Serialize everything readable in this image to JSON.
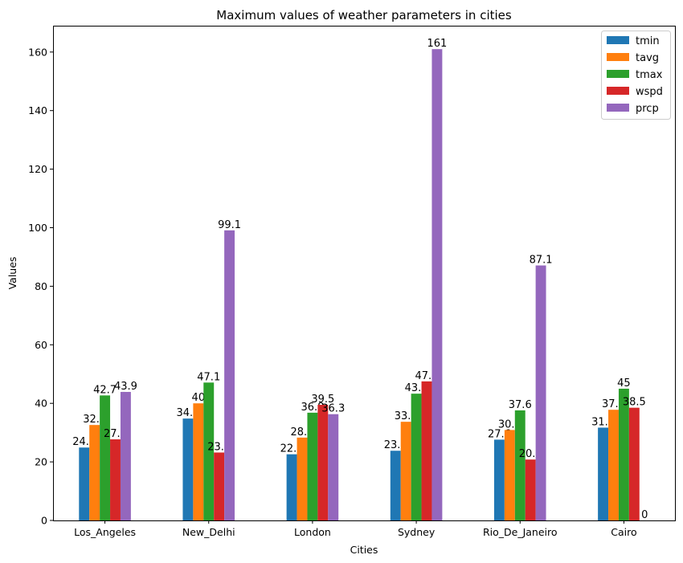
{
  "chart_data": {
    "type": "bar",
    "title": "Maximum values of weather parameters in cities",
    "xlabel": "Cities",
    "ylabel": "Values",
    "ylim": [
      0,
      169
    ],
    "yticks": [
      0,
      20,
      40,
      60,
      80,
      100,
      120,
      140,
      160
    ],
    "grid": false,
    "legend_position": "top-right",
    "categories": [
      "Los_Angeles",
      "New_Delhi",
      "London",
      "Sydney",
      "Rio_De_Janeiro",
      "Cairo"
    ],
    "series": [
      {
        "name": "tmin",
        "color": "#1f77b4",
        "values": [
          24.9,
          34.8,
          22.6,
          23.8,
          27.6,
          31.7
        ],
        "labels": [
          "24.9",
          "34.8",
          "22.6",
          "23.8",
          "27.6",
          "31.7"
        ]
      },
      {
        "name": "tavg",
        "color": "#ff7f0e",
        "values": [
          32.6,
          40,
          28.3,
          33.7,
          30.9,
          37.8
        ],
        "labels": [
          "32.6",
          "40",
          "28.3",
          "33.7",
          "30.9",
          "37.8"
        ]
      },
      {
        "name": "tmax",
        "color": "#2ca02c",
        "values": [
          42.7,
          47.1,
          36.8,
          43.3,
          37.6,
          45
        ],
        "labels": [
          "42.7",
          "47.1",
          "36.8",
          "43.3",
          "37.6",
          "45"
        ]
      },
      {
        "name": "wspd",
        "color": "#d62728",
        "values": [
          27.7,
          23.2,
          39.5,
          47.5,
          20.8,
          38.5
        ],
        "labels": [
          "27.7",
          "23.2",
          "39.5",
          "47.5",
          "20.8",
          "38.5"
        ]
      },
      {
        "name": "prcp",
        "color": "#9467bd",
        "values": [
          43.9,
          99.1,
          36.3,
          161,
          87.1,
          0
        ],
        "labels": [
          "43.9",
          "99.1",
          "36.3",
          "161",
          "87.1",
          "0"
        ]
      }
    ]
  }
}
